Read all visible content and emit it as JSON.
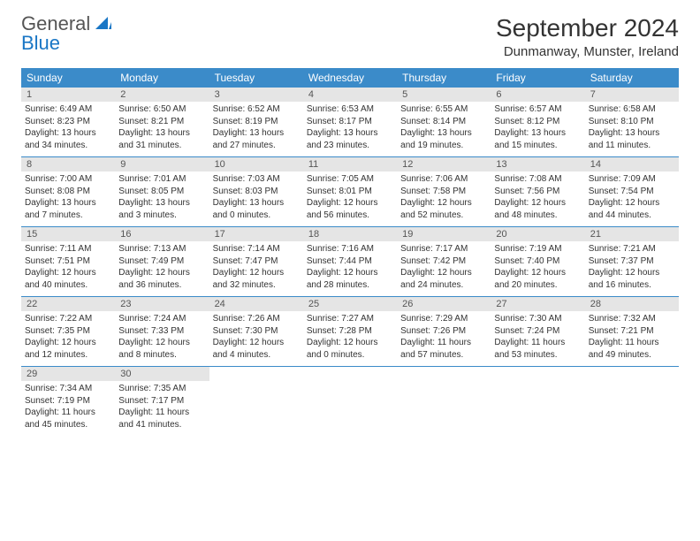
{
  "logo": {
    "word1": "General",
    "word2": "Blue"
  },
  "title": "September 2024",
  "location": "Dunmanway, Munster, Ireland",
  "colors": {
    "header_bg": "#3b8bc9",
    "header_text": "#ffffff",
    "daynum_bg": "#e5e5e5",
    "border": "#3b8bc9",
    "logo_blue": "#1976c5",
    "text": "#333333"
  },
  "day_names": [
    "Sunday",
    "Monday",
    "Tuesday",
    "Wednesday",
    "Thursday",
    "Friday",
    "Saturday"
  ],
  "weeks": [
    [
      {
        "num": "1",
        "sunrise": "Sunrise: 6:49 AM",
        "sunset": "Sunset: 8:23 PM",
        "daylight": "Daylight: 13 hours and 34 minutes."
      },
      {
        "num": "2",
        "sunrise": "Sunrise: 6:50 AM",
        "sunset": "Sunset: 8:21 PM",
        "daylight": "Daylight: 13 hours and 31 minutes."
      },
      {
        "num": "3",
        "sunrise": "Sunrise: 6:52 AM",
        "sunset": "Sunset: 8:19 PM",
        "daylight": "Daylight: 13 hours and 27 minutes."
      },
      {
        "num": "4",
        "sunrise": "Sunrise: 6:53 AM",
        "sunset": "Sunset: 8:17 PM",
        "daylight": "Daylight: 13 hours and 23 minutes."
      },
      {
        "num": "5",
        "sunrise": "Sunrise: 6:55 AM",
        "sunset": "Sunset: 8:14 PM",
        "daylight": "Daylight: 13 hours and 19 minutes."
      },
      {
        "num": "6",
        "sunrise": "Sunrise: 6:57 AM",
        "sunset": "Sunset: 8:12 PM",
        "daylight": "Daylight: 13 hours and 15 minutes."
      },
      {
        "num": "7",
        "sunrise": "Sunrise: 6:58 AM",
        "sunset": "Sunset: 8:10 PM",
        "daylight": "Daylight: 13 hours and 11 minutes."
      }
    ],
    [
      {
        "num": "8",
        "sunrise": "Sunrise: 7:00 AM",
        "sunset": "Sunset: 8:08 PM",
        "daylight": "Daylight: 13 hours and 7 minutes."
      },
      {
        "num": "9",
        "sunrise": "Sunrise: 7:01 AM",
        "sunset": "Sunset: 8:05 PM",
        "daylight": "Daylight: 13 hours and 3 minutes."
      },
      {
        "num": "10",
        "sunrise": "Sunrise: 7:03 AM",
        "sunset": "Sunset: 8:03 PM",
        "daylight": "Daylight: 13 hours and 0 minutes."
      },
      {
        "num": "11",
        "sunrise": "Sunrise: 7:05 AM",
        "sunset": "Sunset: 8:01 PM",
        "daylight": "Daylight: 12 hours and 56 minutes."
      },
      {
        "num": "12",
        "sunrise": "Sunrise: 7:06 AM",
        "sunset": "Sunset: 7:58 PM",
        "daylight": "Daylight: 12 hours and 52 minutes."
      },
      {
        "num": "13",
        "sunrise": "Sunrise: 7:08 AM",
        "sunset": "Sunset: 7:56 PM",
        "daylight": "Daylight: 12 hours and 48 minutes."
      },
      {
        "num": "14",
        "sunrise": "Sunrise: 7:09 AM",
        "sunset": "Sunset: 7:54 PM",
        "daylight": "Daylight: 12 hours and 44 minutes."
      }
    ],
    [
      {
        "num": "15",
        "sunrise": "Sunrise: 7:11 AM",
        "sunset": "Sunset: 7:51 PM",
        "daylight": "Daylight: 12 hours and 40 minutes."
      },
      {
        "num": "16",
        "sunrise": "Sunrise: 7:13 AM",
        "sunset": "Sunset: 7:49 PM",
        "daylight": "Daylight: 12 hours and 36 minutes."
      },
      {
        "num": "17",
        "sunrise": "Sunrise: 7:14 AM",
        "sunset": "Sunset: 7:47 PM",
        "daylight": "Daylight: 12 hours and 32 minutes."
      },
      {
        "num": "18",
        "sunrise": "Sunrise: 7:16 AM",
        "sunset": "Sunset: 7:44 PM",
        "daylight": "Daylight: 12 hours and 28 minutes."
      },
      {
        "num": "19",
        "sunrise": "Sunrise: 7:17 AM",
        "sunset": "Sunset: 7:42 PM",
        "daylight": "Daylight: 12 hours and 24 minutes."
      },
      {
        "num": "20",
        "sunrise": "Sunrise: 7:19 AM",
        "sunset": "Sunset: 7:40 PM",
        "daylight": "Daylight: 12 hours and 20 minutes."
      },
      {
        "num": "21",
        "sunrise": "Sunrise: 7:21 AM",
        "sunset": "Sunset: 7:37 PM",
        "daylight": "Daylight: 12 hours and 16 minutes."
      }
    ],
    [
      {
        "num": "22",
        "sunrise": "Sunrise: 7:22 AM",
        "sunset": "Sunset: 7:35 PM",
        "daylight": "Daylight: 12 hours and 12 minutes."
      },
      {
        "num": "23",
        "sunrise": "Sunrise: 7:24 AM",
        "sunset": "Sunset: 7:33 PM",
        "daylight": "Daylight: 12 hours and 8 minutes."
      },
      {
        "num": "24",
        "sunrise": "Sunrise: 7:26 AM",
        "sunset": "Sunset: 7:30 PM",
        "daylight": "Daylight: 12 hours and 4 minutes."
      },
      {
        "num": "25",
        "sunrise": "Sunrise: 7:27 AM",
        "sunset": "Sunset: 7:28 PM",
        "daylight": "Daylight: 12 hours and 0 minutes."
      },
      {
        "num": "26",
        "sunrise": "Sunrise: 7:29 AM",
        "sunset": "Sunset: 7:26 PM",
        "daylight": "Daylight: 11 hours and 57 minutes."
      },
      {
        "num": "27",
        "sunrise": "Sunrise: 7:30 AM",
        "sunset": "Sunset: 7:24 PM",
        "daylight": "Daylight: 11 hours and 53 minutes."
      },
      {
        "num": "28",
        "sunrise": "Sunrise: 7:32 AM",
        "sunset": "Sunset: 7:21 PM",
        "daylight": "Daylight: 11 hours and 49 minutes."
      }
    ],
    [
      {
        "num": "29",
        "sunrise": "Sunrise: 7:34 AM",
        "sunset": "Sunset: 7:19 PM",
        "daylight": "Daylight: 11 hours and 45 minutes."
      },
      {
        "num": "30",
        "sunrise": "Sunrise: 7:35 AM",
        "sunset": "Sunset: 7:17 PM",
        "daylight": "Daylight: 11 hours and 41 minutes."
      },
      null,
      null,
      null,
      null,
      null
    ]
  ]
}
